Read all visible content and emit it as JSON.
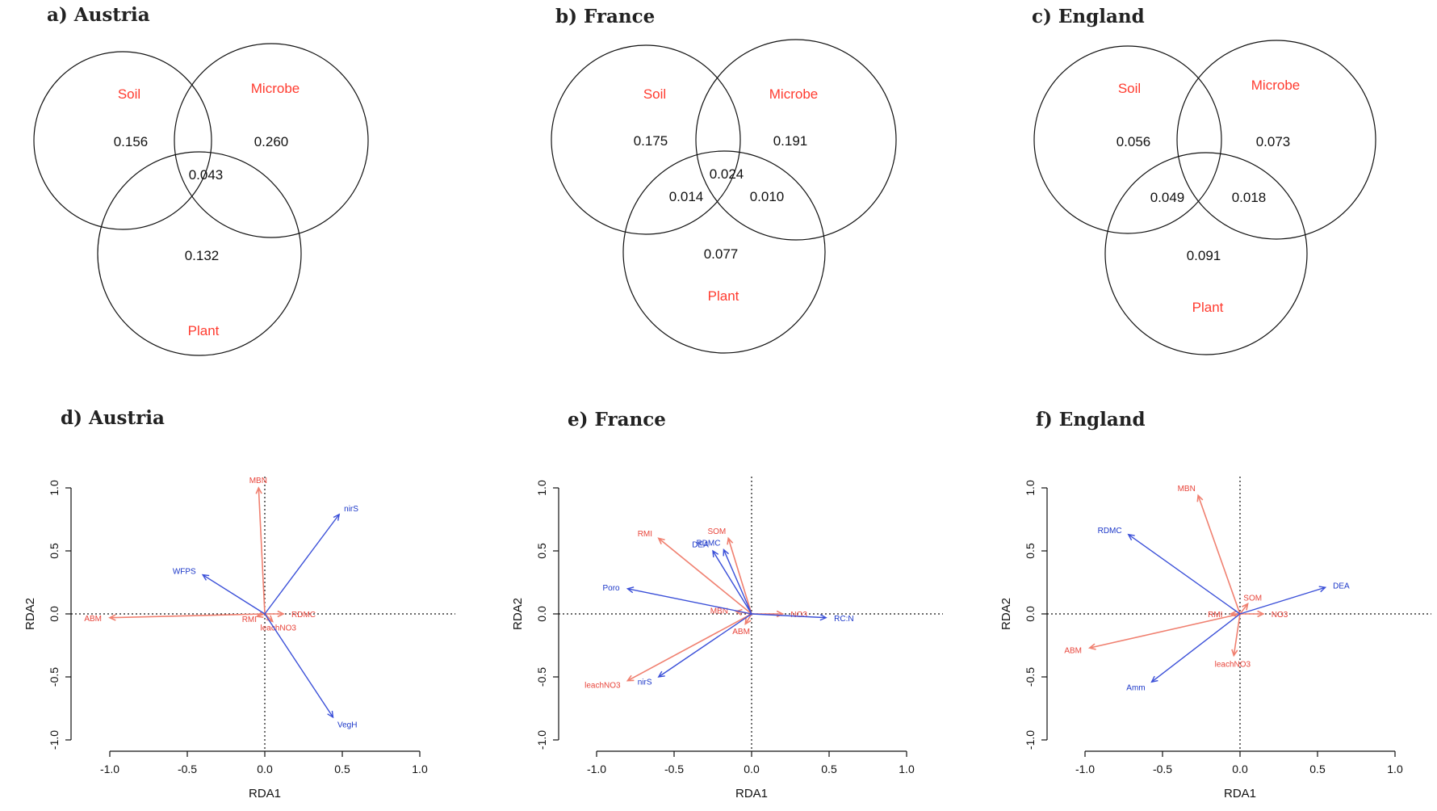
{
  "venn": [
    {
      "title": "a) Austria",
      "labels": {
        "soil": "Soil",
        "microbe": "Microbe",
        "plant": "Plant"
      },
      "values": {
        "soil": "0.156",
        "microbe": "0.260",
        "plant": "0.132",
        "soil_microbe_plant": "0.043"
      }
    },
    {
      "title": "b) France",
      "labels": {
        "soil": "Soil",
        "microbe": "Microbe",
        "plant": "Plant"
      },
      "values": {
        "soil": "0.175",
        "microbe": "0.191",
        "plant": "0.077",
        "soil_microbe_plant": "0.024",
        "soil_plant": "0.014",
        "microbe_plant": "0.010"
      }
    },
    {
      "title": "c) England",
      "labels": {
        "soil": "Soil",
        "microbe": "Microbe",
        "plant": "Plant"
      },
      "values": {
        "soil": "0.056",
        "microbe": "0.073",
        "plant": "0.091",
        "soil_plant": "0.049",
        "microbe_plant": "0.018"
      }
    }
  ],
  "chart_data": [
    {
      "type": "scatter",
      "title": "d) Austria",
      "xlabel": "RDA1",
      "ylabel": "RDA2",
      "xlim": [
        -1.25,
        1.25
      ],
      "ylim": [
        -1.05,
        1.05
      ],
      "xticks": [
        "-1.0",
        "-0.5",
        "0.0",
        "0.5",
        "1.0"
      ],
      "yticks": [
        "-1.0",
        "-0.5",
        "0.0",
        "0.5",
        "1.0"
      ],
      "grid": false,
      "vectors": [
        {
          "name": "MBN",
          "x": -0.04,
          "y": 1.0,
          "color": "red"
        },
        {
          "name": "ABM",
          "x": -1.0,
          "y": -0.03,
          "color": "red"
        },
        {
          "name": "RMI",
          "x": -0.05,
          "y": -0.02,
          "color": "red"
        },
        {
          "name": "leachNO3",
          "x": 0.05,
          "y": -0.06,
          "color": "red"
        },
        {
          "name": "RDMC",
          "x": 0.12,
          "y": 0.0,
          "color": "red"
        },
        {
          "name": "nirS",
          "x": 0.48,
          "y": 0.79,
          "color": "blue"
        },
        {
          "name": "WFPS",
          "x": -0.4,
          "y": 0.31,
          "color": "blue"
        },
        {
          "name": "VegH",
          "x": 0.44,
          "y": -0.82,
          "color": "blue"
        }
      ]
    },
    {
      "type": "scatter",
      "title": "e) France",
      "xlabel": "RDA1",
      "ylabel": "RDA2",
      "xlim": [
        -1.25,
        1.25
      ],
      "ylim": [
        -1.05,
        1.05
      ],
      "xticks": [
        "-1.0",
        "-0.5",
        "0.0",
        "0.5",
        "1.0"
      ],
      "yticks": [
        "-1.0",
        "-0.5",
        "0.0",
        "0.5",
        "1.0"
      ],
      "grid": false,
      "vectors": [
        {
          "name": "RMI",
          "x": -0.6,
          "y": 0.6,
          "color": "red"
        },
        {
          "name": "SOM",
          "x": -0.15,
          "y": 0.6,
          "color": "red"
        },
        {
          "name": "leachNO3",
          "x": -0.8,
          "y": -0.53,
          "color": "red"
        },
        {
          "name": "ABM",
          "x": -0.04,
          "y": -0.08,
          "color": "red"
        },
        {
          "name": "MBN",
          "x": -0.1,
          "y": 0.02,
          "color": "red"
        },
        {
          "name": "NO3",
          "x": 0.2,
          "y": 0.0,
          "color": "red"
        },
        {
          "name": "DEA",
          "x": -0.25,
          "y": 0.5,
          "color": "blue"
        },
        {
          "name": "RDMC",
          "x": -0.18,
          "y": 0.51,
          "color": "blue"
        },
        {
          "name": "Poro",
          "x": -0.8,
          "y": 0.2,
          "color": "blue"
        },
        {
          "name": "nirS",
          "x": -0.6,
          "y": -0.5,
          "color": "blue"
        },
        {
          "name": "RC:N",
          "x": 0.48,
          "y": -0.03,
          "color": "blue"
        }
      ]
    },
    {
      "type": "scatter",
      "title": "f) England",
      "xlabel": "RDA1",
      "ylabel": "RDA2",
      "xlim": [
        -1.25,
        1.25
      ],
      "ylim": [
        -1.05,
        1.05
      ],
      "xticks": [
        "-1.0",
        "-0.5",
        "0.0",
        "0.5",
        "1.0"
      ],
      "yticks": [
        "-1.0",
        "-0.5",
        "0.0",
        "0.5",
        "1.0"
      ],
      "grid": false,
      "vectors": [
        {
          "name": "MBN",
          "x": -0.27,
          "y": 0.94,
          "color": "red"
        },
        {
          "name": "ABM",
          "x": -0.97,
          "y": -0.27,
          "color": "red"
        },
        {
          "name": "leachNO3",
          "x": -0.04,
          "y": -0.33,
          "color": "red"
        },
        {
          "name": "RMI",
          "x": -0.06,
          "y": 0.0,
          "color": "red"
        },
        {
          "name": "SOM",
          "x": 0.05,
          "y": 0.08,
          "color": "red"
        },
        {
          "name": "NO3",
          "x": 0.15,
          "y": 0.0,
          "color": "red"
        },
        {
          "name": "RDMC",
          "x": -0.72,
          "y": 0.63,
          "color": "blue"
        },
        {
          "name": "DEA",
          "x": 0.55,
          "y": 0.21,
          "color": "blue"
        },
        {
          "name": "Amm",
          "x": -0.57,
          "y": -0.54,
          "color": "blue"
        }
      ]
    }
  ]
}
